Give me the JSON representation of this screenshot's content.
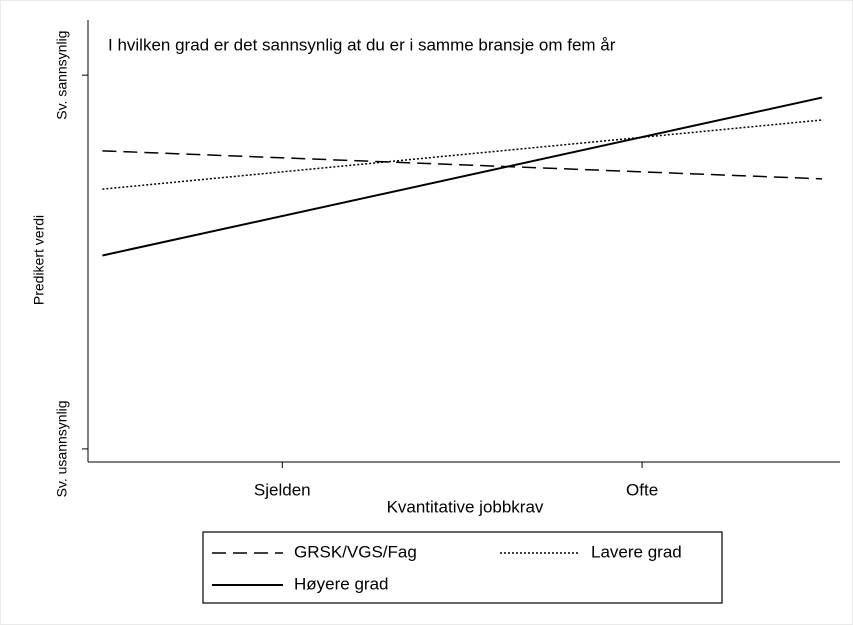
{
  "chart_data": {
    "type": "line",
    "title": "I hvilken grad er det sannsynlig at du er i samme bransje om fem år",
    "xlabel": "Kvantitative jobbkrav",
    "ylabel": "Predikert verdi",
    "x": [
      -0.5,
      1.5
    ],
    "xlim": [
      -0.54,
      1.55
    ],
    "xticks": [
      {
        "value": 0,
        "label": "Sjelden"
      },
      {
        "value": 1,
        "label": "Ofte"
      }
    ],
    "ylim": [
      0.86,
      5.59
    ],
    "yticks": [
      {
        "value": 1,
        "label": "Sv. usannsynlig"
      },
      {
        "value": 5,
        "label": "Sv. sannsynlig"
      }
    ],
    "series": [
      {
        "name": "GRSK/VGS/Fag",
        "color": "#000000",
        "dash": "dashed",
        "values": [
          4.19,
          3.89
        ]
      },
      {
        "name": "Lavere grad",
        "color": "#000000",
        "dash": "dotted",
        "values": [
          3.78,
          4.52
        ]
      },
      {
        "name": "Høyere grad",
        "color": "#000000",
        "dash": "solid",
        "values": [
          3.07,
          4.76
        ]
      }
    ]
  }
}
